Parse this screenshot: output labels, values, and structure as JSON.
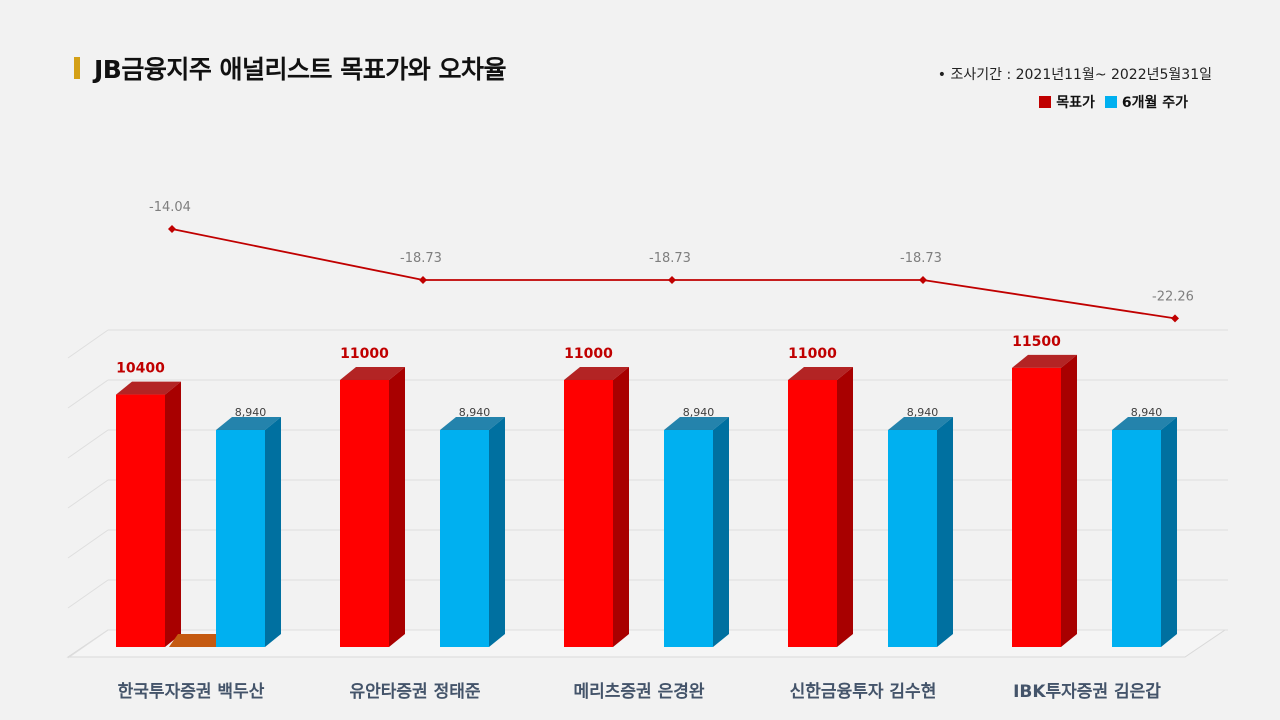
{
  "header": {
    "title": "JB금융지주 애널리스트 목표가와 오차율",
    "period": "•  조사기간 : 2021년11월~ 2022년5월31일"
  },
  "legend": [
    {
      "label": "목표가",
      "color": "#ff0000"
    },
    {
      "label": "6개월 주가",
      "color": "#00b0f0"
    }
  ],
  "chart_data": {
    "type": "bar",
    "categories": [
      "한국투자증권 백두산",
      "유안타증권 정태준",
      "메리츠증권 은경완",
      "신한금융투자 김수현",
      "IBK투자증권 김은갑"
    ],
    "series": [
      {
        "name": "목표가",
        "values": [
          10400,
          11000,
          11000,
          11000,
          11500
        ],
        "labels": [
          "10400",
          "11000",
          "11000",
          "11000",
          "11500"
        ],
        "color": "#ff0000",
        "side_color": "#a80000"
      },
      {
        "name": "6개월 주가",
        "values": [
          8940,
          8940,
          8940,
          8940,
          8940
        ],
        "labels": [
          "8,940",
          "8,940",
          "8,940",
          "8,940",
          "8,940"
        ],
        "color": "#00b0f0",
        "side_color": "#0070a0"
      }
    ],
    "line": {
      "values": [
        -14.04,
        -18.73,
        -18.73,
        -18.73,
        -22.26
      ],
      "labels": [
        "-14.04",
        "-18.73",
        "-18.73",
        "-18.73",
        "-22.26"
      ],
      "color": "#c00000"
    },
    "ylim": [
      0,
      12000
    ],
    "grid": true
  }
}
